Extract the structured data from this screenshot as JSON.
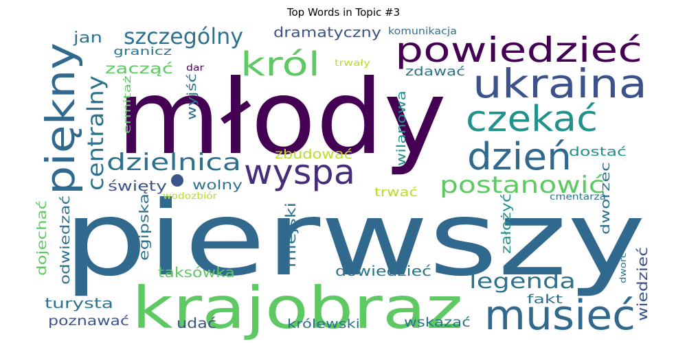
{
  "chart_data": {
    "type": "wordcloud",
    "title": "Top Words in Topic #3",
    "words": [
      {
        "text": "młody",
        "weight": 1.0,
        "color": "#440154"
      },
      {
        "text": "pierwszy",
        "weight": 0.98,
        "color": "#31688e"
      },
      {
        "text": "krajobraz",
        "weight": 0.52,
        "color": "#5ec962"
      },
      {
        "text": "piękny",
        "weight": 0.4,
        "color": "#31688e"
      },
      {
        "text": "powiedzieć",
        "weight": 0.36,
        "color": "#440154"
      },
      {
        "text": "ukraina",
        "weight": 0.36,
        "color": "#3b528b"
      },
      {
        "text": "musieć",
        "weight": 0.35,
        "color": "#31688e"
      },
      {
        "text": "wyspa",
        "weight": 0.33,
        "color": "#472c7a"
      },
      {
        "text": "dzień",
        "weight": 0.32,
        "color": "#31688e"
      },
      {
        "text": "czekać",
        "weight": 0.31,
        "color": "#21918c"
      },
      {
        "text": "król",
        "weight": 0.3,
        "color": "#5ec962"
      },
      {
        "text": "postanowić",
        "weight": 0.23,
        "color": "#5ec962"
      },
      {
        "text": "szczególny",
        "weight": 0.22,
        "color": "#2c728e"
      },
      {
        "text": "centralny",
        "weight": 0.22,
        "color": "#2c728e"
      },
      {
        "text": "dzielnica",
        "weight": 0.22,
        "color": "#2c728e"
      },
      {
        "text": "legenda",
        "weight": 0.19,
        "color": "#2c728e"
      },
      {
        "text": "dramatyczny",
        "weight": 0.13,
        "color": "#3b528b"
      },
      {
        "text": "zbudować",
        "weight": 0.12,
        "color": "#b5de2b"
      },
      {
        "text": "jan",
        "weight": 0.13,
        "color": "#2c728e"
      },
      {
        "text": "zacząć",
        "weight": 0.12,
        "color": "#5ec962"
      },
      {
        "text": "wolny",
        "weight": 0.11,
        "color": "#2c728e"
      },
      {
        "text": "święty",
        "weight": 0.11,
        "color": "#3b528b"
      },
      {
        "text": "wyjść",
        "weight": 0.11,
        "color": "#2c728e"
      },
      {
        "text": "zdawać",
        "weight": 0.11,
        "color": "#2c728e"
      },
      {
        "text": "wilanowa",
        "weight": 0.11,
        "color": "#21918c"
      },
      {
        "text": "trwać",
        "weight": 0.11,
        "color": "#b5de2b"
      },
      {
        "text": "dostać",
        "weight": 0.11,
        "color": "#21918c"
      },
      {
        "text": "dworzec",
        "weight": 0.11,
        "color": "#2c728e"
      },
      {
        "text": "taksówka",
        "weight": 0.12,
        "color": "#5ec962"
      },
      {
        "text": "dowiedzieć",
        "weight": 0.12,
        "color": "#2c728e"
      },
      {
        "text": "turysta",
        "weight": 0.12,
        "color": "#2c728e"
      },
      {
        "text": "poznawać",
        "weight": 0.11,
        "color": "#3b528b"
      },
      {
        "text": "udać",
        "weight": 0.12,
        "color": "#3b528b"
      },
      {
        "text": "królewski",
        "weight": 0.11,
        "color": "#2c728e"
      },
      {
        "text": "wskazać",
        "weight": 0.11,
        "color": "#2c728e"
      },
      {
        "text": "fakt",
        "weight": 0.1,
        "color": "#2c728e"
      },
      {
        "text": "wiedzieć",
        "weight": 0.12,
        "color": "#3b528b"
      },
      {
        "text": "miejski",
        "weight": 0.11,
        "color": "#2c728e"
      },
      {
        "text": "założyć",
        "weight": 0.11,
        "color": "#21918c"
      },
      {
        "text": "egipska",
        "weight": 0.11,
        "color": "#2c728e"
      },
      {
        "text": "dojechać",
        "weight": 0.11,
        "color": "#5ec962"
      },
      {
        "text": "odwiedzać",
        "weight": 0.11,
        "color": "#2c728e"
      },
      {
        "text": "ermitaż",
        "weight": 0.09,
        "color": "#5ec962"
      },
      {
        "text": "granicz",
        "weight": 0.09,
        "color": "#2c728e"
      },
      {
        "text": "komunikacja",
        "weight": 0.07,
        "color": "#2c728e"
      },
      {
        "text": "trwały",
        "weight": 0.07,
        "color": "#b5de2b"
      },
      {
        "text": "dar",
        "weight": 0.07,
        "color": "#440154"
      },
      {
        "text": "wodozbiór",
        "weight": 0.07,
        "color": "#b5de2b"
      },
      {
        "text": "cmentarza",
        "weight": 0.07,
        "color": "#2c728e"
      },
      {
        "text": "dworc",
        "weight": 0.07,
        "color": "#2c728e"
      }
    ]
  }
}
